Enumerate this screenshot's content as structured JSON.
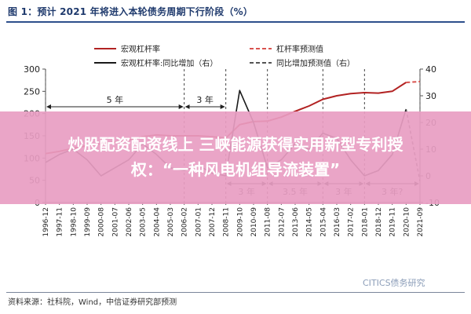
{
  "figure": {
    "title": "图 1：预计 2021 年将进入本轮债务周期下行阶段（%）",
    "source": "资料来源：社科院，Wind，中信证券研究部预测",
    "watermark": "CITICS债务研究"
  },
  "overlay": {
    "line1": "炒股配资配资线上 三峡能源获得实用新型专利授",
    "line2": "权：“一种风电机组导流装置”",
    "color": "#e89dc2"
  },
  "chart_data": {
    "type": "line",
    "x_ticks": [
      "1996-12",
      "1997-11",
      "1998-10",
      "1999-09",
      "2000-08",
      "2001-07",
      "2002-06",
      "2003-05",
      "2004-04",
      "2005-03",
      "2006-02",
      "2007-01",
      "2007-12",
      "2008-11",
      "2009-10",
      "2010-09",
      "2011-08",
      "2012-07",
      "2013-06",
      "2014-05",
      "2015-04",
      "2016-03",
      "2017-02",
      "2018-01",
      "2018-12",
      "2019-11",
      "2020-10",
      "2021-09"
    ],
    "y_left": {
      "range": [
        0,
        300
      ],
      "ticks": [
        0,
        50,
        100,
        150,
        200,
        250,
        300
      ]
    },
    "y_right": {
      "range": [
        -10,
        40
      ],
      "ticks": [
        -10,
        0,
        10,
        20,
        30,
        40
      ]
    },
    "legend": [
      {
        "label": "宏观杠杆率",
        "style": "solid",
        "color": "#b22222"
      },
      {
        "label": "杠杆率预测值",
        "style": "dashed",
        "color": "#d9534f"
      },
      {
        "label": "宏观杠杆率:同比增加（右）",
        "style": "solid",
        "color": "#1a1a1a"
      },
      {
        "label": "同比增加预测值（右）",
        "style": "dashed",
        "color": "#555555"
      }
    ],
    "cycle_annotations": {
      "top": [
        {
          "label": "5 年",
          "from": "1996-12",
          "to": "2006-02"
        },
        {
          "label": "3 年",
          "from": "2006-02",
          "to": "2008-11"
        }
      ],
      "bottom": [
        {
          "label": "3 年",
          "from": "2008-11",
          "to": "2011-08"
        },
        {
          "label": "3.5 年",
          "from": "2011-08",
          "to": "2015-04"
        },
        {
          "label": "3 年",
          "from": "2015-04",
          "to": "2018-01"
        },
        {
          "label": "3 年?",
          "from": "2018-01",
          "to": "2021-09"
        }
      ]
    },
    "series": [
      {
        "name": "宏观杠杆率",
        "axis": "left",
        "x": [
          "1996-12",
          "1997-11",
          "1998-10",
          "1999-09",
          "2000-08",
          "2001-07",
          "2002-06",
          "2003-05",
          "2004-04",
          "2005-03",
          "2006-02",
          "2007-01",
          "2007-12",
          "2008-11",
          "2009-10",
          "2010-09",
          "2011-08",
          "2012-07",
          "2013-06",
          "2014-05",
          "2015-04",
          "2016-03",
          "2017-02",
          "2018-01",
          "2018-12",
          "2019-11",
          "2020-10"
        ],
        "values": [
          110,
          115,
          122,
          128,
          132,
          136,
          140,
          148,
          152,
          150,
          150,
          150,
          148,
          145,
          175,
          182,
          183,
          192,
          205,
          217,
          232,
          240,
          245,
          247,
          246,
          250,
          270
        ]
      },
      {
        "name": "杠杆率预测值",
        "axis": "left",
        "x": [
          "2020-10",
          "2021-09"
        ],
        "values": [
          270,
          272
        ]
      },
      {
        "name": "宏观杠杆率:同比增加（右）",
        "axis": "right",
        "x": [
          "1996-12",
          "1997-11",
          "1998-10",
          "1999-09",
          "2000-08",
          "2001-07",
          "2002-06",
          "2003-05",
          "2004-04",
          "2005-03",
          "2006-02",
          "2007-01",
          "2007-12",
          "2008-11",
          "2009-10",
          "2010-09",
          "2011-08",
          "2012-07",
          "2013-06",
          "2014-05",
          "2015-04",
          "2016-03",
          "2017-02",
          "2018-01",
          "2018-12",
          "2019-11",
          "2020-10"
        ],
        "values": [
          5,
          8,
          10,
          6,
          0,
          3,
          6,
          12,
          8,
          3,
          2,
          4,
          1,
          0,
          32,
          20,
          3,
          6,
          12,
          10,
          16,
          14,
          6,
          0,
          2,
          8,
          25
        ]
      },
      {
        "name": "同比增加预测值（右）",
        "axis": "right",
        "x": [
          "2020-10",
          "2021-09"
        ],
        "values": [
          25,
          -2
        ]
      }
    ]
  }
}
